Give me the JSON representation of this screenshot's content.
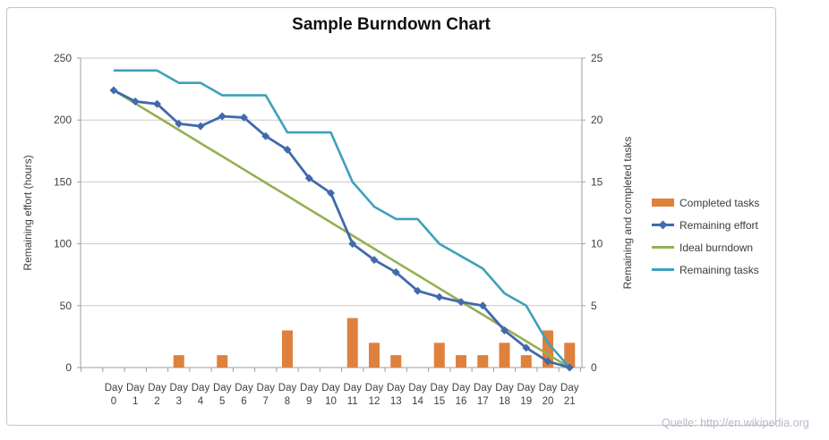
{
  "page": {
    "source_note": "Quelle: http://en.wikipedia.org"
  },
  "chart_data": {
    "type": "combo-bar-line",
    "title": "Sample Burndown Chart",
    "grid": true,
    "legend_position": "right",
    "categories": [
      "Day 0",
      "Day 1",
      "Day 2",
      "Day 3",
      "Day 4",
      "Day 5",
      "Day 6",
      "Day 7",
      "Day 8",
      "Day 9",
      "Day 10",
      "Day 11",
      "Day 12",
      "Day 13",
      "Day 14",
      "Day 15",
      "Day 16",
      "Day 17",
      "Day 18",
      "Day 19",
      "Day 20",
      "Day 21"
    ],
    "x_label_word": "Day",
    "day_numbers": [
      "0",
      "1",
      "2",
      "3",
      "4",
      "5",
      "6",
      "7",
      "8",
      "9",
      "10",
      "11",
      "12",
      "13",
      "14",
      "15",
      "16",
      "17",
      "18",
      "19",
      "20",
      "21"
    ],
    "left_axis": {
      "label": "Remaining effort (hours)",
      "min": 0,
      "max": 250,
      "step": 50,
      "ticks": [
        0,
        50,
        100,
        150,
        200,
        250
      ]
    },
    "right_axis": {
      "label": "Remaining and completed tasks",
      "min": 0,
      "max": 25,
      "step": 5,
      "ticks": [
        0,
        5,
        10,
        15,
        20,
        25
      ]
    },
    "series": [
      {
        "name": "Completed tasks",
        "type": "bar",
        "axis": "right",
        "color": "#de813c",
        "values": [
          0,
          0,
          0,
          1,
          0,
          1,
          0,
          0,
          3,
          0,
          0,
          4,
          2,
          1,
          0,
          2,
          1,
          1,
          2,
          1,
          3,
          2
        ]
      },
      {
        "name": "Remaining effort",
        "type": "line",
        "marker": "diamond",
        "axis": "left",
        "color": "#4169ac",
        "values": [
          224,
          215,
          213,
          197,
          195,
          203,
          202,
          187,
          176,
          153,
          141,
          100,
          87,
          77,
          62,
          57,
          53,
          50,
          30,
          16,
          5,
          0
        ]
      },
      {
        "name": "Ideal burndown",
        "type": "line",
        "marker": "none",
        "axis": "left",
        "color": "#94b052",
        "values": [
          224,
          213.3,
          202.7,
          192,
          181.3,
          170.7,
          160,
          149.3,
          138.7,
          128,
          117.3,
          106.7,
          96,
          85.3,
          74.7,
          64,
          53.3,
          42.7,
          32,
          21.3,
          10.7,
          0
        ]
      },
      {
        "name": "Remaining tasks",
        "type": "line",
        "marker": "none",
        "axis": "right",
        "color": "#3ea0bc",
        "values": [
          24,
          24,
          24,
          23,
          23,
          22,
          22,
          22,
          19,
          19,
          19,
          15,
          13,
          12,
          12,
          10,
          9,
          8,
          6,
          5,
          2,
          0
        ]
      }
    ],
    "style_colors": {
      "gridline": "#c9c9c9",
      "axis_line": "#9e9e9e",
      "tick_text": "#3f3f3f"
    }
  }
}
